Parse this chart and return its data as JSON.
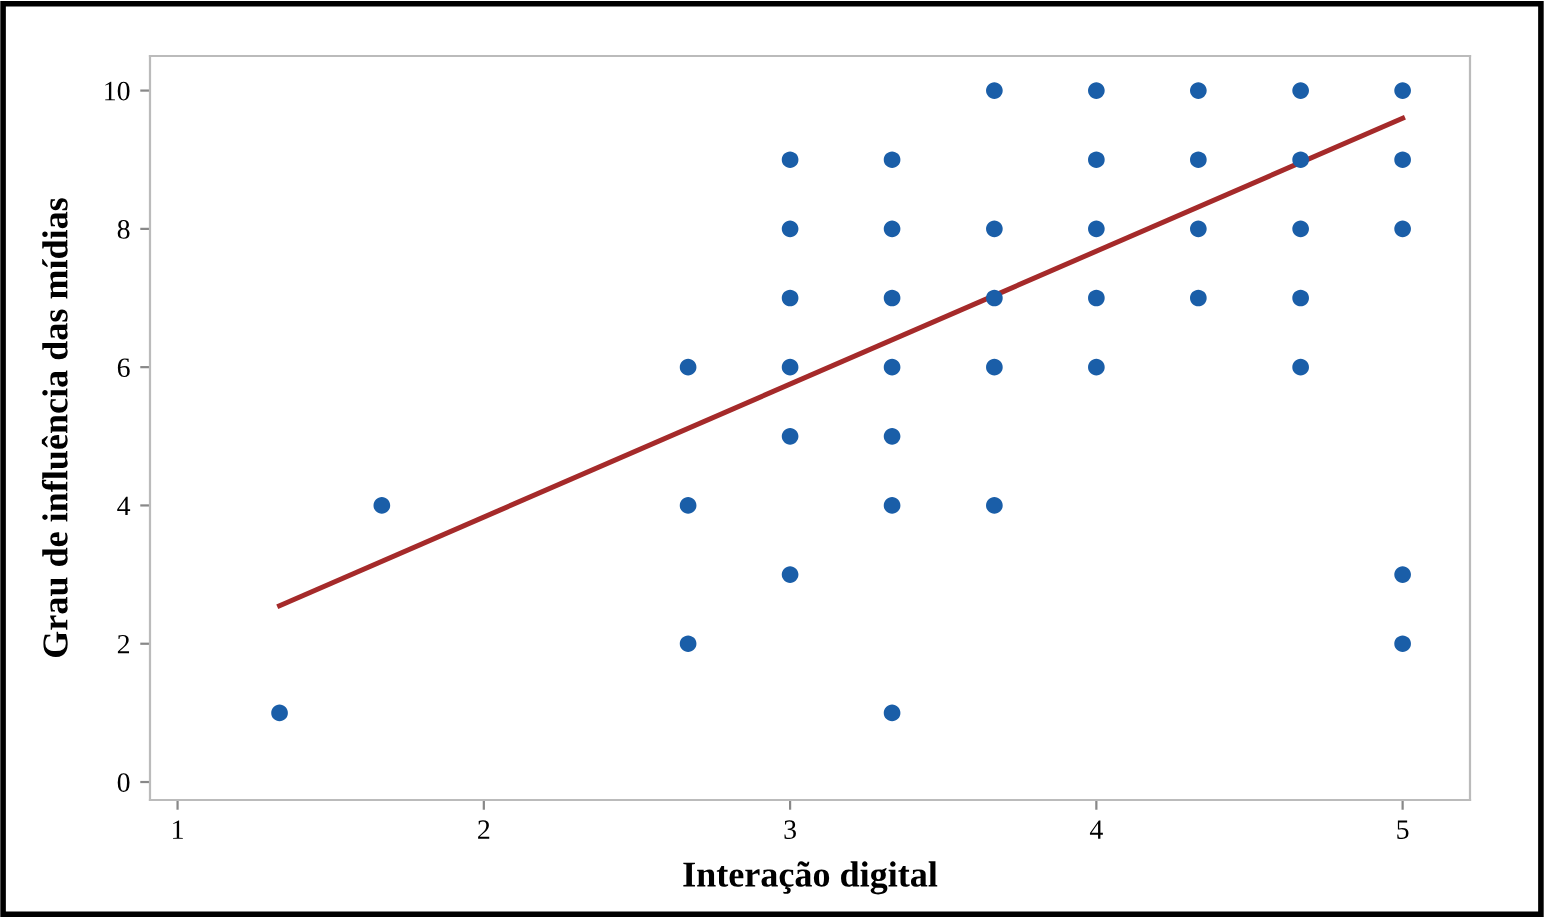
{
  "chart_data": {
    "type": "scatter",
    "xlabel": "Interação digital",
    "ylabel": "Grau de influência das mídias",
    "xlim": [
      0.91,
      5.22
    ],
    "ylim": [
      -0.26,
      10.5
    ],
    "xticks": [
      1,
      2,
      3,
      4,
      5
    ],
    "yticks": [
      0,
      2,
      4,
      6,
      8,
      10
    ],
    "grid": false,
    "series": [
      {
        "color": "#1a5ea8",
        "marker": "circle",
        "x": [
          1.333,
          1.667,
          2.667,
          2.667,
          2.667,
          3,
          3,
          3,
          3,
          3,
          3,
          3.333,
          3.333,
          3.333,
          3.333,
          3.333,
          3.333,
          3.333,
          3.667,
          3.667,
          3.667,
          3.667,
          3.667,
          4,
          4,
          4,
          4,
          4,
          4.333,
          4.333,
          4.333,
          4.333,
          4.667,
          4.667,
          4.667,
          4.667,
          4.667,
          5,
          5,
          5,
          5,
          5
        ],
        "values": [
          1,
          4,
          6,
          4,
          2,
          9,
          8,
          7,
          6,
          5,
          3,
          9,
          8,
          7,
          6,
          5,
          4,
          1,
          10,
          8,
          7,
          6,
          4,
          10,
          9,
          8,
          7,
          6,
          10,
          9,
          8,
          7,
          10,
          9,
          8,
          7,
          6,
          10,
          9,
          8,
          3,
          2
        ]
      },
      {
        "type": "line",
        "color": "#a52a2a",
        "x": [
          1.333,
          5
        ],
        "values": [
          2.55,
          9.6
        ]
      }
    ]
  }
}
